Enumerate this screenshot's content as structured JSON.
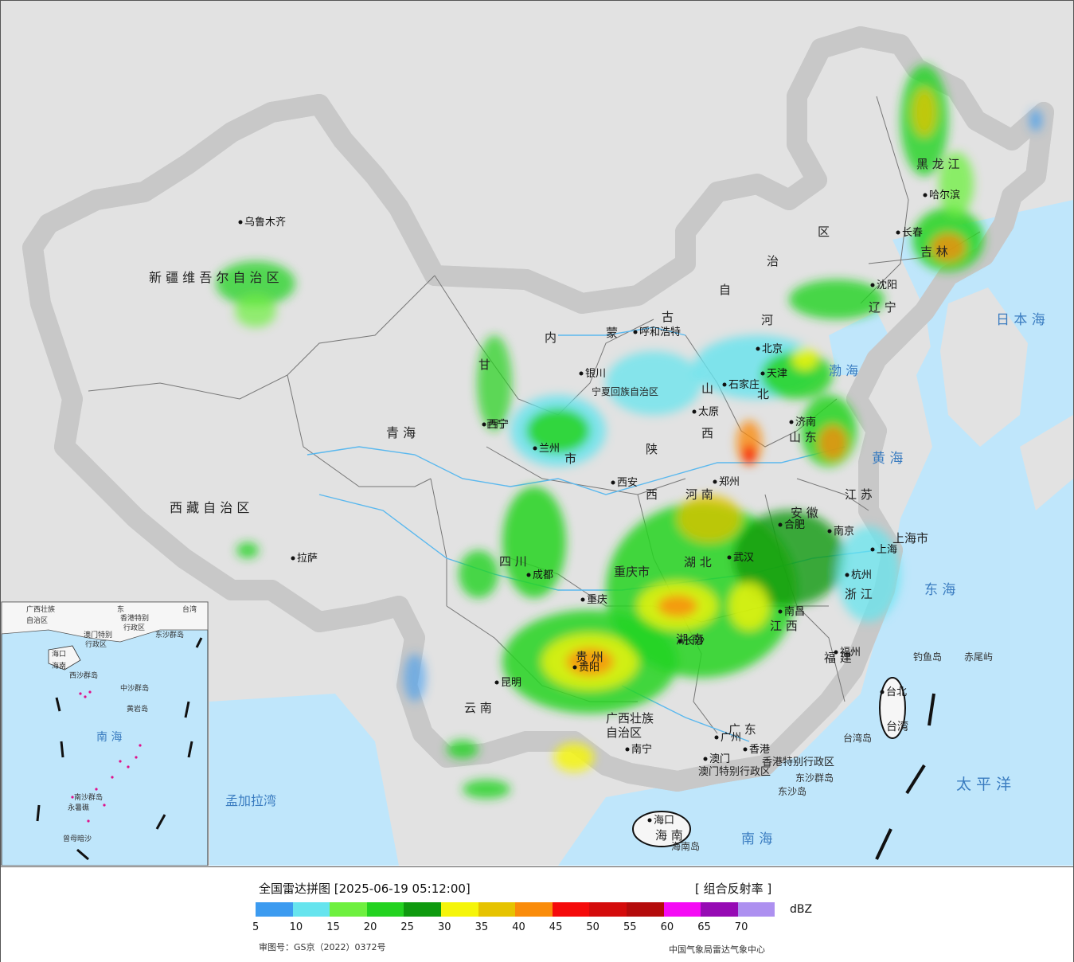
{
  "map": {
    "provinces": [
      {
        "id": "xinjiang",
        "label": "新 疆 维 吾 尔 自 治 区"
      },
      {
        "id": "xizang",
        "label": "西 藏 自 治 区"
      },
      {
        "id": "qinghai",
        "label": "青 海"
      },
      {
        "id": "gansu",
        "label": "甘"
      },
      {
        "id": "neimenggu-1",
        "label": "内"
      },
      {
        "id": "neimenggu-2",
        "label": "蒙"
      },
      {
        "id": "neimenggu-3",
        "label": "古"
      },
      {
        "id": "neimenggu-4",
        "label": "自"
      },
      {
        "id": "neimenggu-5",
        "label": "治"
      },
      {
        "id": "neimenggu-6",
        "label": "区"
      },
      {
        "id": "heilongjiang",
        "label": "黑 龙 江"
      },
      {
        "id": "jilin",
        "label": "吉 林"
      },
      {
        "id": "liaoning",
        "label": "辽 宁"
      },
      {
        "id": "hebei-1",
        "label": "河"
      },
      {
        "id": "hebei-2",
        "label": "北"
      },
      {
        "id": "shanxi-1",
        "label": "山"
      },
      {
        "id": "shanxi-2",
        "label": "西"
      },
      {
        "id": "shandong",
        "label": "山 东"
      },
      {
        "id": "shaanxi-1",
        "label": "陕"
      },
      {
        "id": "shaanxi-2",
        "label": "西"
      },
      {
        "id": "henan",
        "label": "河 南"
      },
      {
        "id": "jiangsu",
        "label": "江 苏"
      },
      {
        "id": "anhui",
        "label": "安 徽"
      },
      {
        "id": "shanghai",
        "label": "上海市"
      },
      {
        "id": "zhejiang",
        "label": "浙 江"
      },
      {
        "id": "hubei",
        "label": "湖 北"
      },
      {
        "id": "hunan",
        "label": "湖 南"
      },
      {
        "id": "jiangxi",
        "label": "江 西"
      },
      {
        "id": "fujian",
        "label": "福 建"
      },
      {
        "id": "sichuan",
        "label": "四 川"
      },
      {
        "id": "chongqing",
        "label": "重庆市"
      },
      {
        "id": "guizhou",
        "label": "贵 州"
      },
      {
        "id": "yunnan",
        "label": "云 南"
      },
      {
        "id": "guangxi",
        "label": "广西壮族\n自治区"
      },
      {
        "id": "guangdong",
        "label": "广 东"
      },
      {
        "id": "hainan",
        "label": "海 南"
      },
      {
        "id": "ningxia",
        "label": "宁夏回族自治区"
      },
      {
        "id": "ningxia-short",
        "label": "西宁"
      },
      {
        "id": "gansu-shi",
        "label": "市"
      },
      {
        "id": "hk",
        "label": "香港特别行政区"
      },
      {
        "id": "macau",
        "label": "澳门特别行政区"
      },
      {
        "id": "taiwan",
        "label": "台湾"
      }
    ],
    "cities": [
      {
        "id": "urumqi",
        "label": "乌鲁木齐"
      },
      {
        "id": "lhasa",
        "label": "拉萨"
      },
      {
        "id": "xining",
        "label": "西宁"
      },
      {
        "id": "lanzhou",
        "label": "兰州"
      },
      {
        "id": "yinchuan",
        "label": "银川"
      },
      {
        "id": "hohhot",
        "label": "呼和浩特"
      },
      {
        "id": "harbin",
        "label": "哈尔滨"
      },
      {
        "id": "changchun",
        "label": "长春"
      },
      {
        "id": "shenyang",
        "label": "沈阳"
      },
      {
        "id": "beijing",
        "label": "北京"
      },
      {
        "id": "tianjin",
        "label": "天津"
      },
      {
        "id": "shijiazhuang",
        "label": "石家庄"
      },
      {
        "id": "taiyuan",
        "label": "太原"
      },
      {
        "id": "jinan",
        "label": "济南"
      },
      {
        "id": "zhengzhou",
        "label": "郑州"
      },
      {
        "id": "xian",
        "label": "西安"
      },
      {
        "id": "nanjing",
        "label": "南京"
      },
      {
        "id": "hefei",
        "label": "合肥"
      },
      {
        "id": "shanghai-city",
        "label": "上海"
      },
      {
        "id": "hangzhou",
        "label": "杭州"
      },
      {
        "id": "wuhan",
        "label": "武汉"
      },
      {
        "id": "changsha",
        "label": "长沙"
      },
      {
        "id": "nanchang",
        "label": "南昌"
      },
      {
        "id": "fuzhou",
        "label": "福州"
      },
      {
        "id": "chengdu",
        "label": "成都"
      },
      {
        "id": "chongqing-city",
        "label": "重庆"
      },
      {
        "id": "guiyang",
        "label": "贵阳"
      },
      {
        "id": "kunming",
        "label": "昆明"
      },
      {
        "id": "nanning",
        "label": "南宁"
      },
      {
        "id": "guangzhou",
        "label": "广州"
      },
      {
        "id": "hongkong",
        "label": "香港"
      },
      {
        "id": "macao",
        "label": "澳门"
      },
      {
        "id": "haikou",
        "label": "海口"
      },
      {
        "id": "taipei",
        "label": "台北"
      }
    ],
    "seas": [
      {
        "id": "japan-sea",
        "label": "日 本 海"
      },
      {
        "id": "bohai",
        "label": "渤 海"
      },
      {
        "id": "yellow-sea",
        "label": "黄 海"
      },
      {
        "id": "east-sea",
        "label": "东 海"
      },
      {
        "id": "pacific",
        "label": "太 平 洋"
      },
      {
        "id": "south-sea",
        "label": "南 海"
      },
      {
        "id": "bengal",
        "label": "孟加拉湾"
      }
    ],
    "islands": [
      {
        "id": "diaoyu",
        "label": "钓鱼岛"
      },
      {
        "id": "chiwei",
        "label": "赤尾屿"
      },
      {
        "id": "taiwan-island",
        "label": "台湾岛"
      },
      {
        "id": "dongsha-1",
        "label": "东沙群岛"
      },
      {
        "id": "dongsha-2",
        "label": "东沙岛"
      },
      {
        "id": "hainan-island",
        "label": "海南岛"
      }
    ],
    "inset": {
      "labels": [
        {
          "id": "inset-guangxi",
          "label": "广西壮族"
        },
        {
          "id": "inset-zzq",
          "label": "自治区"
        },
        {
          "id": "inset-dong",
          "label": "东"
        },
        {
          "id": "inset-taiwan",
          "label": "台湾"
        },
        {
          "id": "inset-hk",
          "label": "香港特别"
        },
        {
          "id": "inset-hk2",
          "label": "行政区"
        },
        {
          "id": "inset-macau",
          "label": "澳门特别"
        },
        {
          "id": "inset-macau2",
          "label": "行政区"
        },
        {
          "id": "inset-dongsha",
          "label": "东沙群岛"
        },
        {
          "id": "inset-haikou",
          "label": "海口"
        },
        {
          "id": "inset-hainan",
          "label": "海南"
        },
        {
          "id": "inset-xisha",
          "label": "西沙群岛"
        },
        {
          "id": "inset-zhongsha",
          "label": "中沙群岛"
        },
        {
          "id": "inset-huangyan",
          "label": "黄岩岛"
        },
        {
          "id": "inset-nanhai",
          "label": "南 海"
        },
        {
          "id": "inset-yongshu",
          "label": "永暑礁"
        },
        {
          "id": "inset-nansha",
          "label": "南沙群岛"
        },
        {
          "id": "inset-zengmu",
          "label": "曾母暗沙"
        }
      ]
    }
  },
  "legend": {
    "title": "全国雷达拼图 [2025-06-19 05:12:00]",
    "product": "[ 组合反射率 ]",
    "unit": "dBZ",
    "colors": [
      "#3c9bf0",
      "#66e4ee",
      "#6ef03f",
      "#23d320",
      "#0f9a0f",
      "#f5f50a",
      "#e6c300",
      "#fa8c0a",
      "#f50a0a",
      "#d40b0b",
      "#b40b0b",
      "#f50af5",
      "#960ab4",
      "#ad90f0"
    ],
    "ticks": [
      "5",
      "10",
      "15",
      "20",
      "25",
      "30",
      "35",
      "40",
      "45",
      "50",
      "55",
      "60",
      "65",
      "70"
    ],
    "approval": "审图号：GS京（2022）0372号",
    "credit": "中国气象局雷达气象中心"
  }
}
